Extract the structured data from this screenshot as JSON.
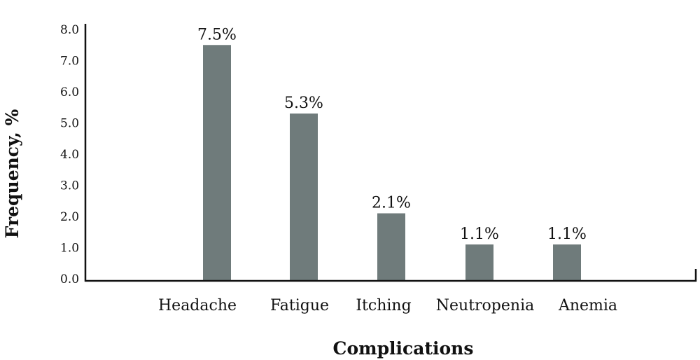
{
  "chart_data": {
    "type": "bar",
    "categories": [
      "Headache",
      "Fatigue",
      "Itching",
      "Neutropenia",
      "Anemia"
    ],
    "values": [
      7.5,
      5.3,
      2.1,
      1.1,
      1.1
    ],
    "data_labels": [
      "7.5%",
      "5.3%",
      "2.1%",
      "1.1%",
      "1.1%"
    ],
    "xlabel": "Complications",
    "ylabel": "Frequency, %",
    "ylim": [
      0,
      8
    ],
    "yticks": [
      "0.0",
      "1.0",
      "2.0",
      "3.0",
      "4.0",
      "5.0",
      "6.0",
      "7.0",
      "8.0"
    ],
    "grid": false,
    "bar_color": "#6f7b7b"
  }
}
